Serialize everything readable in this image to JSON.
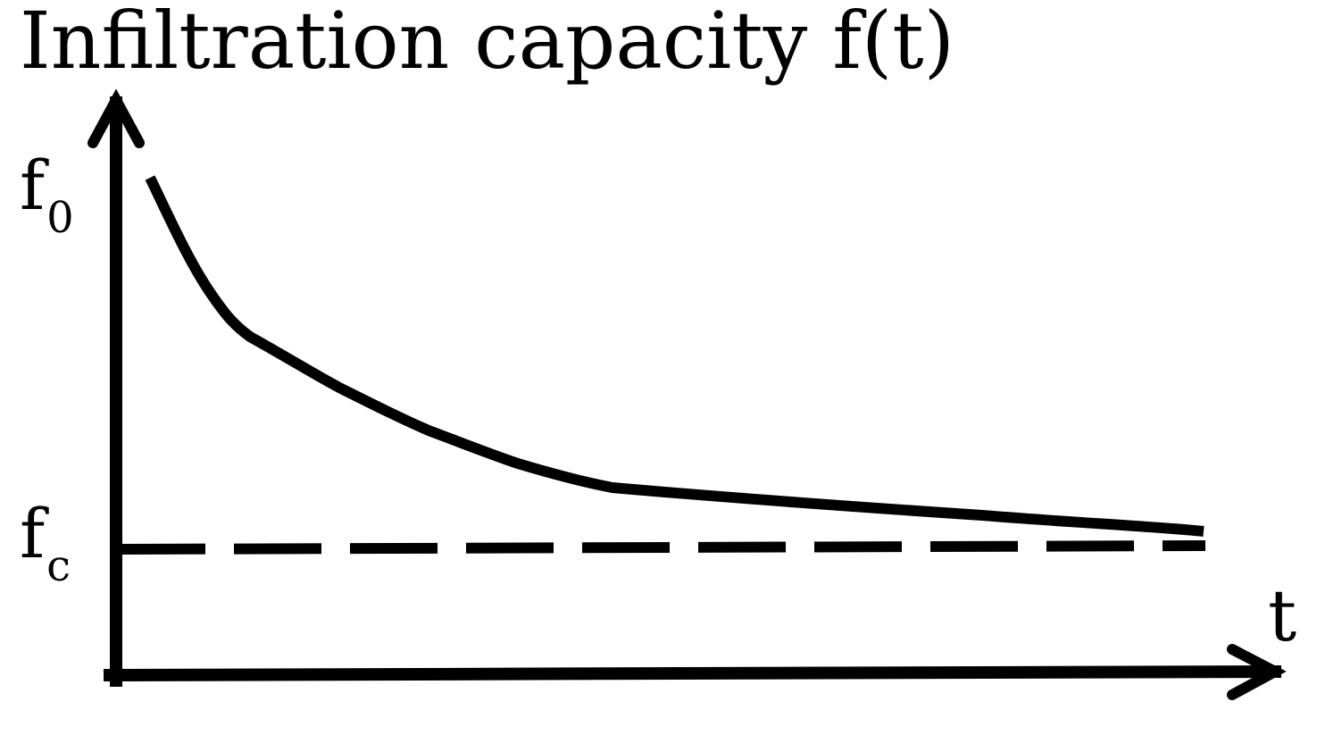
{
  "title": "Infiltration capacity f(t)",
  "y_markers": {
    "f0": {
      "base": "f",
      "subscript": "0"
    },
    "fc": {
      "base": "f",
      "subscript": "c"
    }
  },
  "x_axis_label": "t",
  "curve": {
    "description_style": "solid",
    "levels_fraction_between_fc_and_f0": [
      1.0,
      0.5,
      0.05
    ],
    "color": "#000000"
  },
  "asymptote": {
    "style": "dashed",
    "color": "#000000"
  }
}
